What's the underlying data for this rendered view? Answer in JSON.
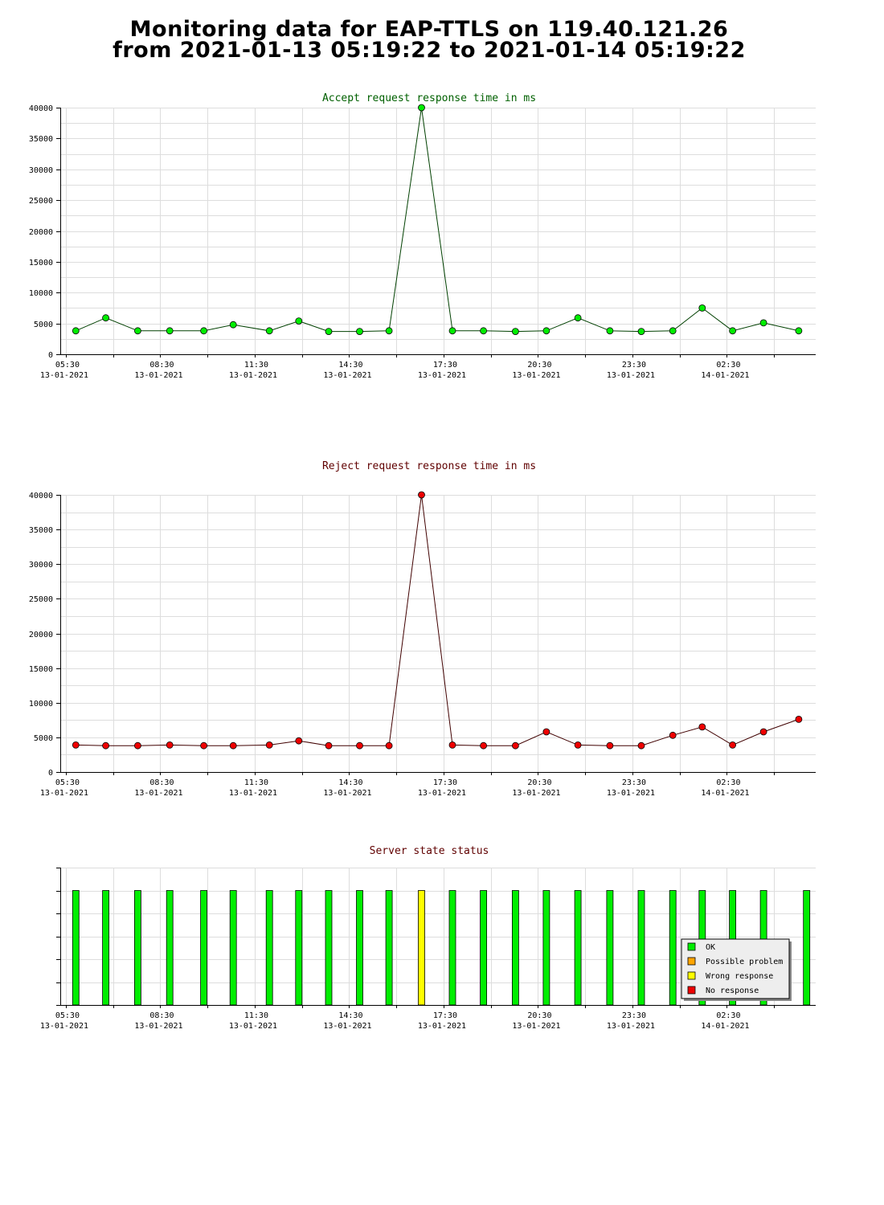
{
  "page": {
    "title_line1": "Monitoring data for EAP-TTLS on 119.40.121.26",
    "title_line2": "from 2021-01-13 05:19:22 to 2021-01-14 05:19:22"
  },
  "x_axis_ticks": [
    {
      "time": "05:30",
      "date": "13-01-2021"
    },
    {
      "time": "08:30",
      "date": "13-01-2021"
    },
    {
      "time": "11:30",
      "date": "13-01-2021"
    },
    {
      "time": "14:30",
      "date": "13-01-2021"
    },
    {
      "time": "17:30",
      "date": "13-01-2021"
    },
    {
      "time": "20:30",
      "date": "13-01-2021"
    },
    {
      "time": "23:30",
      "date": "13-01-2021"
    },
    {
      "time": "02:30",
      "date": "14-01-2021"
    }
  ],
  "chart_data": [
    {
      "type": "line",
      "title": "Accept request response time in ms",
      "title_color": "#006000",
      "line_color": "#004000",
      "marker_color": "#00ee00",
      "ylim": [
        0,
        40000
      ],
      "y_ticks": [
        0,
        5000,
        10000,
        15000,
        20000,
        25000,
        30000,
        35000,
        40000
      ],
      "x_range": [
        "2021-01-13 05:19:22",
        "2021-01-14 05:19:22"
      ],
      "x": [
        "2021-01-13 05:49",
        "2021-01-13 06:46",
        "2021-01-13 07:47",
        "2021-01-13 08:48",
        "2021-01-13 09:53",
        "2021-01-13 10:49",
        "2021-01-13 11:58",
        "2021-01-13 12:54",
        "2021-01-13 13:51",
        "2021-01-13 14:50",
        "2021-01-13 15:46",
        "2021-01-13 16:48",
        "2021-01-13 17:47",
        "2021-01-13 18:46",
        "2021-01-13 19:47",
        "2021-01-13 20:46",
        "2021-01-13 21:46",
        "2021-01-13 22:47",
        "2021-01-13 23:47",
        "2021-01-14 00:47",
        "2021-01-14 01:43",
        "2021-01-14 02:41",
        "2021-01-14 03:40",
        "2021-01-14 04:47"
      ],
      "values": [
        3800,
        5900,
        3800,
        3800,
        3800,
        4800,
        3800,
        5400,
        3700,
        3700,
        3800,
        40000,
        3800,
        3800,
        3700,
        3800,
        5900,
        3800,
        3700,
        3800,
        7500,
        3800,
        5100,
        3800
      ]
    },
    {
      "type": "line",
      "title": "Reject request response time in ms",
      "title_color": "#600000",
      "line_color": "#400000",
      "marker_color": "#ee0000",
      "ylim": [
        0,
        40000
      ],
      "y_ticks": [
        0,
        5000,
        10000,
        15000,
        20000,
        25000,
        30000,
        35000,
        40000
      ],
      "x_range": [
        "2021-01-13 05:19:22",
        "2021-01-14 05:19:22"
      ],
      "x": [
        "2021-01-13 05:49",
        "2021-01-13 06:46",
        "2021-01-13 07:47",
        "2021-01-13 08:48",
        "2021-01-13 09:53",
        "2021-01-13 10:49",
        "2021-01-13 11:58",
        "2021-01-13 12:54",
        "2021-01-13 13:51",
        "2021-01-13 14:50",
        "2021-01-13 15:46",
        "2021-01-13 16:48",
        "2021-01-13 17:47",
        "2021-01-13 18:46",
        "2021-01-13 19:47",
        "2021-01-13 20:46",
        "2021-01-13 21:46",
        "2021-01-13 22:47",
        "2021-01-13 23:47",
        "2021-01-14 00:47",
        "2021-01-14 01:43",
        "2021-01-14 02:41",
        "2021-01-14 03:40",
        "2021-01-14 04:47"
      ],
      "values": [
        3900,
        3800,
        3800,
        3900,
        3800,
        3800,
        3900,
        4500,
        3800,
        3800,
        3800,
        40000,
        3900,
        3800,
        3800,
        5800,
        3900,
        3800,
        3800,
        5300,
        6500,
        3900,
        5800,
        7600
      ]
    },
    {
      "type": "bar",
      "title": "Server state status",
      "title_color": "#600000",
      "x_range": [
        "2021-01-13 05:19:22",
        "2021-01-14 05:19:22"
      ],
      "x": [
        "2021-01-13 05:49",
        "2021-01-13 06:46",
        "2021-01-13 07:47",
        "2021-01-13 08:48",
        "2021-01-13 09:53",
        "2021-01-13 10:49",
        "2021-01-13 11:58",
        "2021-01-13 12:54",
        "2021-01-13 13:51",
        "2021-01-13 14:50",
        "2021-01-13 15:46",
        "2021-01-13 16:48",
        "2021-01-13 17:47",
        "2021-01-13 18:46",
        "2021-01-13 19:47",
        "2021-01-13 20:46",
        "2021-01-13 21:46",
        "2021-01-13 22:47",
        "2021-01-13 23:47",
        "2021-01-14 00:47",
        "2021-01-14 01:43",
        "2021-01-14 02:41",
        "2021-01-14 03:40",
        "2021-01-14 05:02"
      ],
      "status": [
        "OK",
        "OK",
        "OK",
        "OK",
        "OK",
        "OK",
        "OK",
        "OK",
        "OK",
        "OK",
        "OK",
        "Wrong response",
        "OK",
        "OK",
        "OK",
        "OK",
        "OK",
        "OK",
        "OK",
        "OK",
        "OK",
        "OK",
        "OK",
        "OK"
      ],
      "legend_position": "bottom-right",
      "legend": [
        {
          "label": "OK",
          "color": "#00ee00"
        },
        {
          "label": "Possible problem",
          "color": "#ffa500"
        },
        {
          "label": "Wrong response",
          "color": "#ffff00"
        },
        {
          "label": "No response",
          "color": "#ee0000"
        }
      ]
    }
  ]
}
